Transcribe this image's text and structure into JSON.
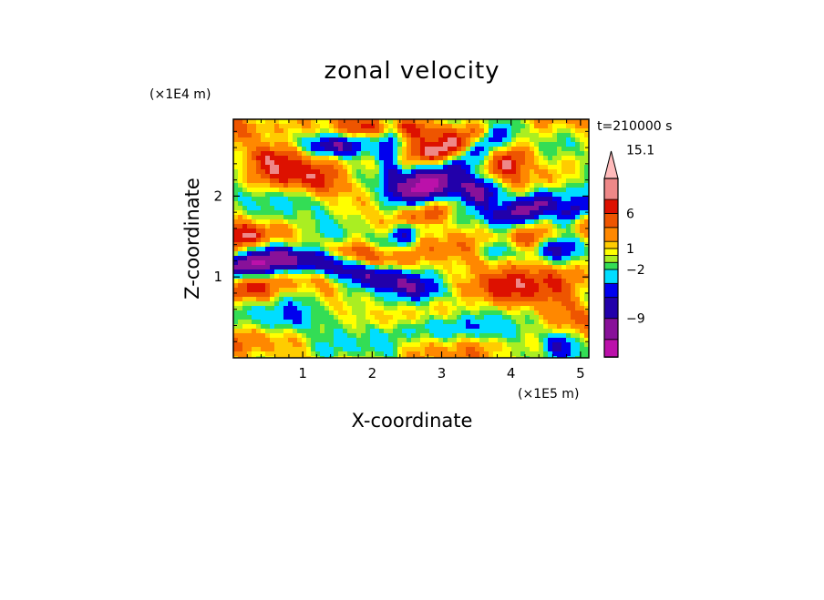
{
  "chart_data": {
    "type": "heatmap",
    "title": "zonal velocity",
    "time_label": "t=210000 s",
    "xlabel": "X-coordinate",
    "ylabel": "Z-coordinate",
    "x_unit": "(×1E5 m)",
    "y_unit": "(×1E4 m)",
    "xlim": [
      0,
      5.12
    ],
    "ylim": [
      0,
      2.95
    ],
    "x_ticks": [
      "1",
      "2",
      "3",
      "4",
      "5"
    ],
    "x_tick_values": [
      1,
      2,
      3,
      4,
      5
    ],
    "y_ticks": [
      "1",
      "2"
    ],
    "y_tick_values": [
      1,
      2
    ],
    "colorbar": {
      "levels": [
        -14.5,
        -12,
        -9,
        -6,
        -4,
        -2,
        -1,
        0,
        1,
        2,
        4,
        6,
        8,
        11,
        15.1
      ],
      "colors": [
        "#ee11aa",
        "#bb11aa",
        "#881199",
        "#2200aa",
        "#0000ee",
        "#00ddff",
        "#33dd55",
        "#aaee22",
        "#ffff00",
        "#ffcc00",
        "#ff8800",
        "#ee5500",
        "#dd1100",
        "#ee8888",
        "#ffbbbb"
      ],
      "labels": [
        {
          "value": 15.1,
          "text": "15.1"
        },
        {
          "value": 6,
          "text": "6"
        },
        {
          "value": 1,
          "text": "1"
        },
        {
          "value": -2,
          "text": "−2"
        },
        {
          "value": -9,
          "text": "−9"
        }
      ]
    },
    "features": [
      {
        "x": 1.3,
        "z": 1.15,
        "sx": 1.3,
        "sz": 0.11,
        "amp": -10,
        "angle": -12
      },
      {
        "x": 2.8,
        "z": 2.1,
        "sx": 0.45,
        "sz": 0.17,
        "amp": -13,
        "angle": 16
      },
      {
        "x": 3.55,
        "z": 2.05,
        "sx": 0.25,
        "sz": 0.13,
        "amp": -12,
        "angle": 10
      },
      {
        "x": 4.3,
        "z": 1.85,
        "sx": 0.35,
        "sz": 0.12,
        "amp": -11,
        "angle": 15
      },
      {
        "x": 4.9,
        "z": 1.8,
        "sx": 0.22,
        "sz": 0.1,
        "amp": -9,
        "angle": 20
      },
      {
        "x": 2.5,
        "z": 1.55,
        "sx": 0.18,
        "sz": 0.12,
        "amp": -9,
        "angle": 20
      },
      {
        "x": 3.6,
        "z": 2.65,
        "sx": 0.35,
        "sz": 0.1,
        "amp": -8,
        "angle": 25
      },
      {
        "x": 1.5,
        "z": 2.6,
        "sx": 0.3,
        "sz": 0.08,
        "amp": -8,
        "angle": 0
      },
      {
        "x": 0.3,
        "z": 1.15,
        "sx": 0.35,
        "sz": 0.1,
        "amp": -11,
        "angle": 0
      },
      {
        "x": 2.25,
        "z": 2.55,
        "sx": 0.12,
        "sz": 0.35,
        "amp": -7,
        "angle": 0
      },
      {
        "x": 4.6,
        "z": 1.35,
        "sx": 0.25,
        "sz": 0.1,
        "amp": -6,
        "angle": 0
      },
      {
        "x": 3.8,
        "z": 1.35,
        "sx": 0.2,
        "sz": 0.1,
        "amp": -6,
        "angle": 0
      },
      {
        "x": 3.0,
        "z": 2.55,
        "sx": 0.5,
        "sz": 0.12,
        "amp": 7,
        "angle": 15
      },
      {
        "x": 0.15,
        "z": 1.45,
        "sx": 0.3,
        "sz": 0.12,
        "amp": 9,
        "angle": 0
      },
      {
        "x": 1.8,
        "z": 1.3,
        "sx": 0.5,
        "sz": 0.1,
        "amp": 6,
        "angle": -10
      },
      {
        "x": 2.8,
        "z": 1.8,
        "sx": 0.5,
        "sz": 0.12,
        "amp": 8,
        "angle": 15
      },
      {
        "x": 4.2,
        "z": 1.45,
        "sx": 0.3,
        "sz": 0.12,
        "amp": 6,
        "angle": 0
      },
      {
        "x": 4.0,
        "z": 2.45,
        "sx": 0.3,
        "sz": 0.12,
        "amp": 7,
        "angle": 20
      },
      {
        "x": 4.3,
        "z": 0.85,
        "sx": 0.6,
        "sz": 0.3,
        "amp": 4,
        "angle": 0
      },
      {
        "x": 3.4,
        "z": 0.7,
        "sx": 0.3,
        "sz": 0.2,
        "amp": 3,
        "angle": 0
      },
      {
        "x": 0.2,
        "z": 0.85,
        "sx": 0.3,
        "sz": 0.1,
        "amp": 7,
        "angle": 0
      },
      {
        "x": 1.0,
        "z": 2.2,
        "sx": 0.5,
        "sz": 0.12,
        "amp": 5,
        "angle": -10
      },
      {
        "x": 0.6,
        "z": 2.5,
        "sx": 0.3,
        "sz": 0.1,
        "amp": 5,
        "angle": 0
      },
      {
        "x": 3.2,
        "z": 0.35,
        "sx": 0.8,
        "sz": 0.12,
        "amp": -4,
        "angle": 0
      },
      {
        "x": 2.2,
        "z": 0.65,
        "sx": 0.3,
        "sz": 0.12,
        "amp": -4,
        "angle": 10
      },
      {
        "x": 0.8,
        "z": 0.45,
        "sx": 0.5,
        "sz": 0.12,
        "amp": -3,
        "angle": 0
      },
      {
        "x": 4.7,
        "z": 0.2,
        "sx": 0.15,
        "sz": 0.1,
        "amp": -5,
        "angle": 0
      },
      {
        "x": 1.5,
        "z": 1.75,
        "sx": 0.4,
        "sz": 0.2,
        "amp": -2.5,
        "angle": 0
      },
      {
        "x": 2.0,
        "z": 2.85,
        "sx": 0.6,
        "sz": 0.08,
        "amp": 7,
        "angle": 0
      }
    ]
  }
}
